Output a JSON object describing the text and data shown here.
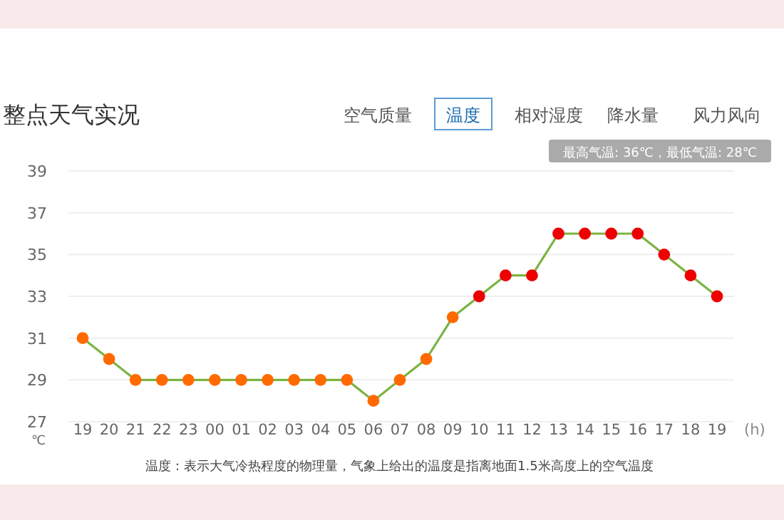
{
  "chart_data": {
    "type": "line",
    "title": "整点天气实况",
    "subtitle": "最高气温: 36℃，最低气温: 28℃",
    "annotations": [
      "空气质量",
      "温度",
      "相对湿度",
      "降水量",
      "风力风向",
      "温度：表示大气冷热程度的物理量，气象上给出的温度是指离地面1.5米高度上的空气温度"
    ],
    "xlabel": "(h)",
    "ylabel": "℃",
    "categories": [
      "19",
      "20",
      "21",
      "22",
      "23",
      "00",
      "01",
      "02",
      "03",
      "04",
      "05",
      "06",
      "07",
      "08",
      "09",
      "10",
      "11",
      "12",
      "13",
      "14",
      "15",
      "16",
      "17",
      "18",
      "19"
    ],
    "series": [
      {
        "color": "#7cb342",
        "values": [
          31,
          30,
          29,
          29,
          29,
          29,
          29,
          29,
          29,
          29,
          29,
          28,
          29,
          30,
          32,
          33,
          34,
          34,
          36,
          36,
          36,
          36,
          35,
          34,
          33
        ],
        "colors": [
          "#ff6a00",
          "#ff6a00",
          "#ff6a00",
          "#ff6a00",
          "#ff6a00",
          "#ff6a00",
          "#ff6a00",
          "#ff6a00",
          "#ff6a00",
          "#ff6a00",
          "#ff6a00",
          "#ff6a00",
          "#ff6a00",
          "#ff6a00",
          "#ff6a00",
          "#ee0000",
          "#ee0000",
          "#ee0000",
          "#ee0000",
          "#ee0000",
          "#ee0000",
          "#ee0000",
          "#ee0000",
          "#ee0000",
          "#ee0000"
        ]
      }
    ],
    "ylim": [
      27,
      39
    ],
    "yticks": [
      27,
      29,
      31,
      33,
      35,
      37,
      39
    ],
    "grid": "y",
    "marker": "circle",
    "line_style": "solid"
  }
}
